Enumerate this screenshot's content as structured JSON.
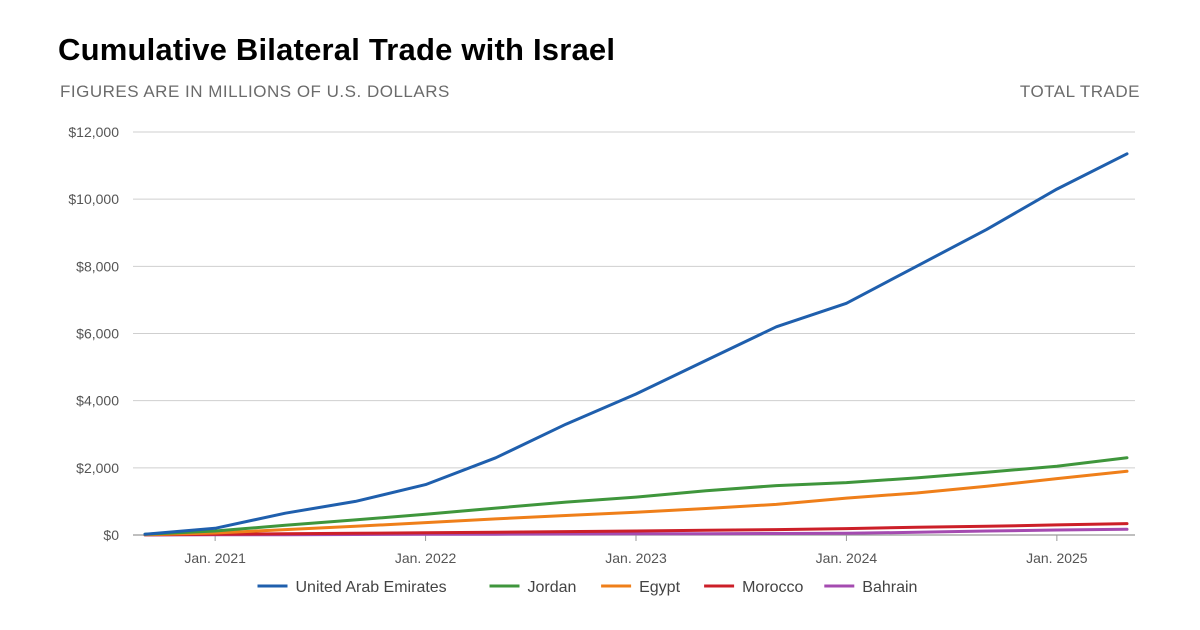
{
  "header": {
    "title": "Cumulative Bilateral Trade with Israel",
    "subtitle": "FIGURES ARE IN MILLIONS OF U.S. DOLLARS",
    "right_label": "TOTAL TRADE"
  },
  "chart_data": {
    "type": "line",
    "title": "Cumulative Bilateral Trade with Israel",
    "subtitle": "FIGURES ARE IN MILLIONS OF U.S. DOLLARS",
    "xlabel": "",
    "ylabel": "",
    "grid": true,
    "legend_position": "bottom",
    "x_range": [
      "2020-09",
      "2025-05"
    ],
    "ylim": [
      0,
      12000
    ],
    "y_ticks": [
      0,
      2000,
      4000,
      6000,
      8000,
      10000,
      12000
    ],
    "y_tick_labels": [
      "$0",
      "$2,000",
      "$4,000",
      "$6,000",
      "$8,000",
      "$10,000",
      "$12,000"
    ],
    "x_ticks": [
      "2021-01",
      "2022-01",
      "2023-01",
      "2024-01",
      "2025-01"
    ],
    "x_tick_labels": [
      "Jan. 2021",
      "Jan. 2022",
      "Jan. 2023",
      "Jan. 2024",
      "Jan. 2025"
    ],
    "x": [
      "2020-09",
      "2021-01",
      "2021-05",
      "2021-09",
      "2022-01",
      "2022-05",
      "2022-09",
      "2023-01",
      "2023-05",
      "2023-09",
      "2024-01",
      "2024-05",
      "2024-09",
      "2025-01",
      "2025-05"
    ],
    "series": [
      {
        "name": "United Arab Emirates",
        "color": "#1f5fad",
        "values": [
          20,
          200,
          650,
          1000,
          1500,
          2300,
          3300,
          4200,
          5200,
          6200,
          6900,
          8000,
          9100,
          10300,
          11350
        ]
      },
      {
        "name": "Jordan",
        "color": "#3f963c",
        "values": [
          20,
          120,
          290,
          450,
          620,
          800,
          980,
          1130,
          1320,
          1470,
          1560,
          1700,
          1870,
          2050,
          2300
        ]
      },
      {
        "name": "Egypt",
        "color": "#ef7f1a",
        "values": [
          10,
          60,
          160,
          260,
          370,
          480,
          580,
          680,
          790,
          910,
          1100,
          1250,
          1450,
          1680,
          1900
        ]
      },
      {
        "name": "Morocco",
        "color": "#cc1f28",
        "values": [
          5,
          20,
          35,
          50,
          65,
          80,
          100,
          120,
          140,
          160,
          190,
          230,
          260,
          300,
          340
        ]
      },
      {
        "name": "Bahrain",
        "color": "#a44bb0",
        "values": [
          0,
          5,
          10,
          15,
          20,
          25,
          30,
          35,
          40,
          45,
          50,
          80,
          120,
          150,
          170
        ]
      }
    ]
  }
}
